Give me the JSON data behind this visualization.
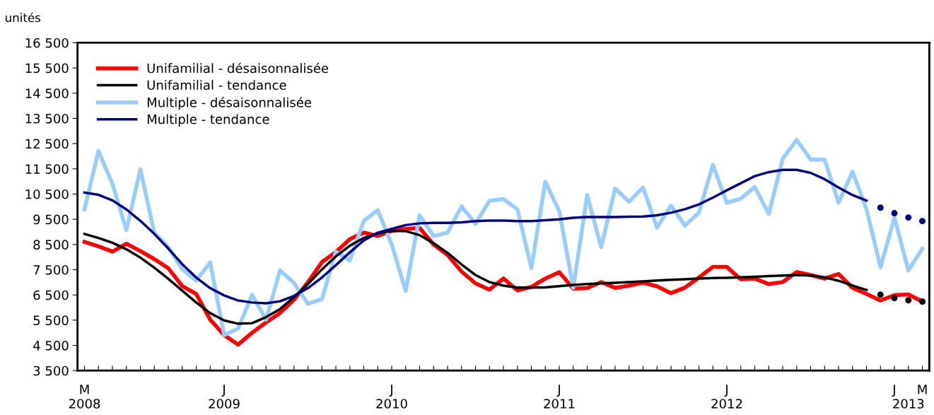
{
  "chart_data": {
    "type": "line",
    "ylabel": "unités",
    "categories": [
      "M\n2008",
      null,
      null,
      null,
      null,
      null,
      null,
      null,
      null,
      null,
      "J\n2009",
      null,
      null,
      null,
      null,
      null,
      null,
      null,
      null,
      null,
      null,
      null,
      "J\n2010",
      null,
      null,
      null,
      null,
      null,
      null,
      null,
      null,
      null,
      null,
      null,
      "J\n2011",
      null,
      null,
      null,
      null,
      null,
      null,
      null,
      null,
      null,
      null,
      null,
      "J\n2012",
      null,
      null,
      null,
      null,
      null,
      null,
      null,
      null,
      null,
      null,
      null,
      "J",
      "\n2013",
      "M"
    ],
    "series": [
      {
        "name": "Unifamilial - désaisonnalisée",
        "color": "#ff0000",
        "values": [
          8600,
          8430,
          8220,
          8530,
          8240,
          7920,
          7560,
          6850,
          6540,
          5520,
          4910,
          4530,
          5000,
          5410,
          5780,
          6310,
          7000,
          7800,
          8200,
          8710,
          8970,
          8840,
          9040,
          9120,
          9150,
          8500,
          8080,
          7430,
          6960,
          6710,
          7150,
          6680,
          6820,
          7150,
          7400,
          6750,
          6770,
          7010,
          6780,
          6870,
          6990,
          6840,
          6570,
          6790,
          7190,
          7610,
          7610,
          7120,
          7150,
          6930,
          7010,
          7410,
          7290,
          7150,
          7330,
          6780,
          6540,
          6280,
          6490,
          6520,
          6240
        ]
      },
      {
        "name": "Unifamilial - tendance",
        "color": "#000000",
        "values": [
          8920,
          8760,
          8570,
          8310,
          7980,
          7580,
          7140,
          6670,
          6200,
          5780,
          5490,
          5360,
          5380,
          5620,
          5940,
          6410,
          6930,
          7510,
          8030,
          8450,
          8760,
          8940,
          9040,
          9030,
          8870,
          8550,
          8170,
          7710,
          7290,
          7010,
          6870,
          6790,
          6790,
          6800,
          6850,
          6900,
          6930,
          6960,
          6980,
          7010,
          7040,
          7070,
          7100,
          7120,
          7150,
          7170,
          7180,
          7200,
          7220,
          7250,
          7270,
          7290,
          7270,
          7200,
          7060,
          6870,
          6700,
          null,
          null,
          null,
          null
        ]
      },
      {
        "name": "Multiple - désaisonnalisée",
        "color": "#99ccff",
        "values": [
          9890,
          12210,
          10900,
          9070,
          11480,
          8970,
          8400,
          7510,
          7070,
          7790,
          4910,
          5170,
          6510,
          5520,
          7470,
          6980,
          6150,
          6330,
          8210,
          7870,
          9440,
          9860,
          8500,
          6660,
          9660,
          8830,
          8970,
          10010,
          9320,
          10230,
          10300,
          9900,
          7570,
          10990,
          9820,
          6780,
          10460,
          8390,
          10720,
          10200,
          10760,
          9170,
          10040,
          9250,
          9760,
          11660,
          10150,
          10320,
          10780,
          9710,
          11900,
          12650,
          11870,
          11870,
          10160,
          11390,
          9900,
          7600,
          9570,
          7470,
          8330
        ]
      },
      {
        "name": "Multiple - tendance",
        "color": "#000080",
        "values": [
          10560,
          10470,
          10250,
          9890,
          9440,
          8920,
          8340,
          7720,
          7190,
          6770,
          6480,
          6280,
          6200,
          6170,
          6250,
          6460,
          6770,
          7190,
          7680,
          8190,
          8660,
          8970,
          9120,
          9270,
          9340,
          9360,
          9360,
          9380,
          9430,
          9450,
          9450,
          9430,
          9430,
          9460,
          9500,
          9560,
          9590,
          9590,
          9590,
          9600,
          9610,
          9660,
          9760,
          9900,
          10090,
          10360,
          10650,
          10930,
          11210,
          11370,
          11460,
          11460,
          11340,
          11090,
          10760,
          10460,
          10240,
          null,
          null,
          null,
          null
        ]
      },
      {
        "type": "scatter",
        "color": "#000000",
        "values": [
          null,
          null,
          null,
          null,
          null,
          null,
          null,
          null,
          null,
          null,
          null,
          null,
          null,
          null,
          null,
          null,
          null,
          null,
          null,
          null,
          null,
          null,
          null,
          null,
          null,
          null,
          null,
          null,
          null,
          null,
          null,
          null,
          null,
          null,
          null,
          null,
          null,
          null,
          null,
          null,
          null,
          null,
          null,
          null,
          null,
          null,
          null,
          null,
          null,
          null,
          null,
          null,
          null,
          null,
          null,
          null,
          null,
          6510,
          6380,
          6290,
          6240
        ]
      },
      {
        "type": "scatter",
        "color": "#000080",
        "values": [
          null,
          null,
          null,
          null,
          null,
          null,
          null,
          null,
          null,
          null,
          null,
          null,
          null,
          null,
          null,
          null,
          null,
          null,
          null,
          null,
          null,
          null,
          null,
          null,
          null,
          null,
          null,
          null,
          null,
          null,
          null,
          null,
          null,
          null,
          null,
          null,
          null,
          null,
          null,
          null,
          null,
          null,
          null,
          null,
          null,
          null,
          null,
          null,
          null,
          null,
          null,
          null,
          null,
          null,
          null,
          null,
          null,
          9960,
          9740,
          9570,
          9430
        ]
      }
    ],
    "ylim": [
      3500,
      16500
    ],
    "yticks": [
      {
        "value": 3500,
        "label": "3 500"
      },
      {
        "value": 4500,
        "label": "4 500"
      },
      {
        "value": 5500,
        "label": "5 500"
      },
      {
        "value": 6500,
        "label": "6 500"
      },
      {
        "value": 7500,
        "label": "7 500"
      },
      {
        "value": 8500,
        "label": "8 500"
      },
      {
        "value": 9500,
        "label": "9 500"
      },
      {
        "value": 10500,
        "label": "10 500"
      },
      {
        "value": 11500,
        "label": "11 500"
      },
      {
        "value": 12500,
        "label": "12 500"
      },
      {
        "value": 13500,
        "label": "13 500"
      },
      {
        "value": 14500,
        "label": "14 500"
      },
      {
        "value": 15500,
        "label": "15 500"
      },
      {
        "value": 16500,
        "label": "16 500"
      }
    ],
    "legend": "top left",
    "grid": false
  }
}
